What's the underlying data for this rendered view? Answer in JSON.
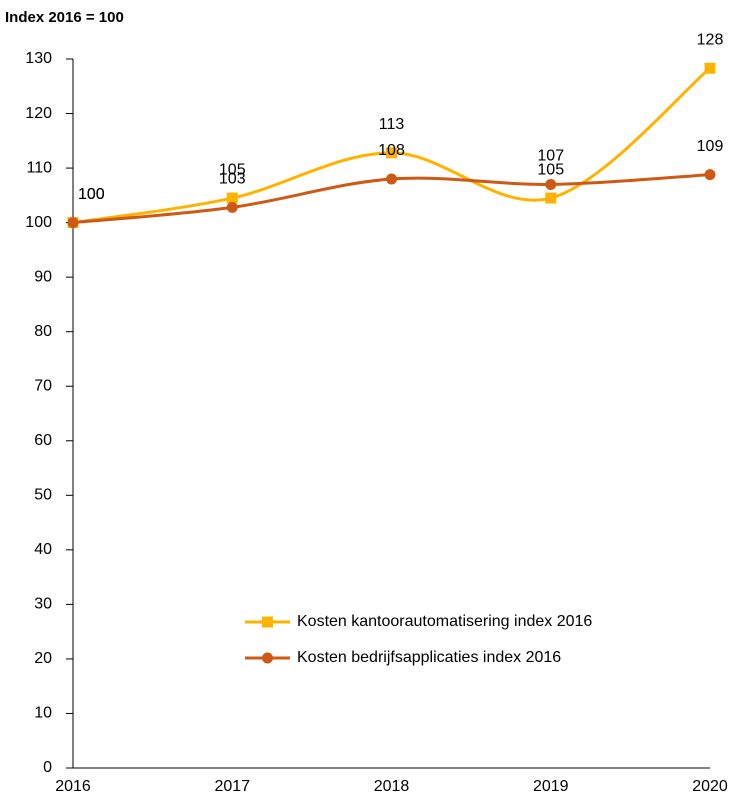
{
  "chart_data": {
    "type": "line",
    "y_axis_title": "Index 2016 = 100",
    "categories": [
      "2016",
      "2017",
      "2018",
      "2019",
      "2020"
    ],
    "series": [
      {
        "name": "Kosten kantoorautomatisering index 2016",
        "color": "#ffb300",
        "marker": "square",
        "values": [
          100,
          104.5,
          112.8,
          104.5,
          128.3
        ],
        "value_labels": [
          "100",
          "105",
          "113",
          "105",
          "128"
        ]
      },
      {
        "name": "Kosten bedrijfsapplicaties index 2016",
        "color": "#cc5a14",
        "marker": "circle",
        "values": [
          100,
          102.8,
          108,
          107,
          108.8
        ],
        "value_labels": [
          "100",
          "103",
          "108",
          "107",
          "109"
        ]
      }
    ],
    "ylim": [
      0,
      130
    ],
    "yticks": [
      0,
      10,
      20,
      30,
      40,
      50,
      60,
      70,
      80,
      90,
      100,
      110,
      120,
      130
    ],
    "smooth": true,
    "legend": "lower center"
  }
}
